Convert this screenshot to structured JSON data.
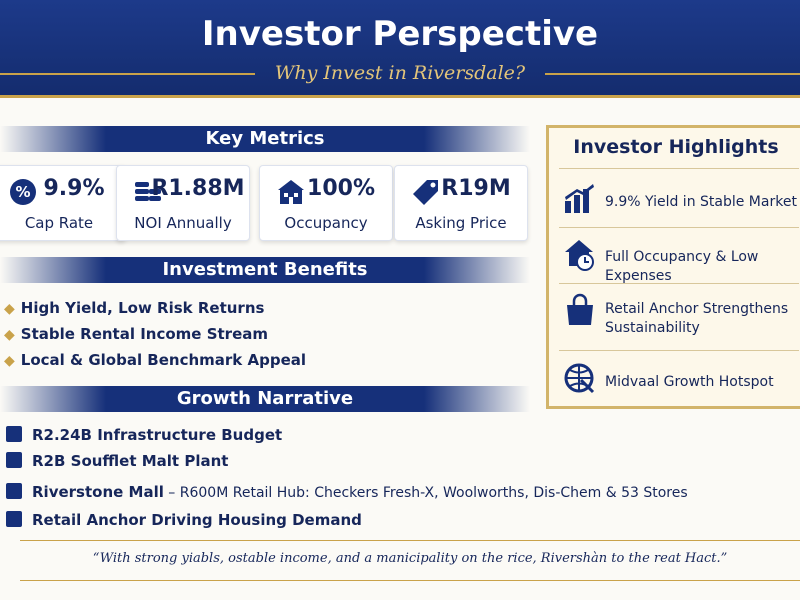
{
  "header": {
    "title": "Investor Perspective",
    "subtitle": "Why Invest in Riversdale?"
  },
  "key_metrics": {
    "title": "Key Metrics",
    "metrics": [
      {
        "value": "9.9%",
        "label": "Cap Rate"
      },
      {
        "value": "R1.88M",
        "label": "NOI Annually"
      },
      {
        "value": "100%",
        "label": "Occupancy"
      },
      {
        "value": "R19M",
        "label": "Asking Price"
      }
    ]
  },
  "benefits": {
    "title": "Investment Benefits",
    "items": [
      "High Yield, Low Risk Returns",
      "Stable Rental Income Stream",
      "Local & Global Benchmark Appeal"
    ]
  },
  "growth": {
    "title": "Growth Narrative",
    "items": [
      {
        "bold": "R2.24B Infrastructure Budget"
      },
      {
        "bold": "R2B Soufflet Malt Plant"
      },
      {
        "bold": "Riverstone Mall",
        "text": " – R600M Retail Hub: Checkers Fresh-X, Woolworths, Dis-Chem & 53 Stores"
      },
      {
        "bold": "Retail Anchor Driving Housing Demand"
      }
    ]
  },
  "quote": "“With strong yiabls, ostable income, and a manicipality on the rice, Rivershàn to the reat Hact.”",
  "highlights": {
    "title": "Investor Highlights",
    "items": [
      "9.9% Yield in Stable Market",
      "Full Occupancy & Low Expenses",
      "Retail Anchor Strengthens Sustainability",
      "Midvaal Growth Hotspot"
    ]
  }
}
